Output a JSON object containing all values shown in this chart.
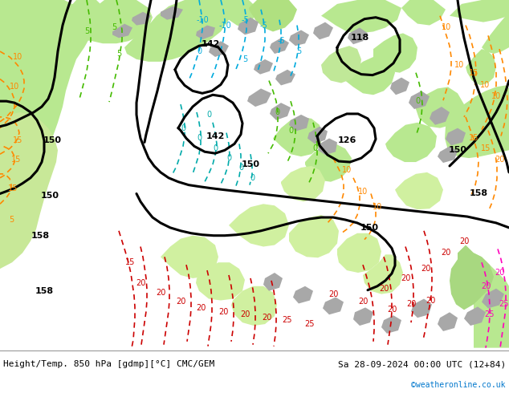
{
  "title_left": "Height/Temp. 850 hPa [gdmp][°C] CMC/GEM",
  "title_right": "Sa 28-09-2024 00:00 UTC (12+84)",
  "watermark": "©weatheronline.co.uk",
  "watermark_color": "#0077cc",
  "fig_width": 6.34,
  "fig_height": 4.9,
  "dpi": 100,
  "bg_sea": "#d8d8d8",
  "bg_land_green": "#b8e890",
  "bg_land_light": "#d0f0a0",
  "bg_gray": "#a8a8a8",
  "black": "#000000",
  "orange": "#ff8800",
  "red": "#cc0000",
  "cyan": "#00aadd",
  "green_c": "#44bb00",
  "teal": "#00aaaa",
  "pink": "#ff00bb",
  "lw_main": 2.2,
  "lw_temp": 1.2,
  "label_fs": 7,
  "title_fs": 8
}
